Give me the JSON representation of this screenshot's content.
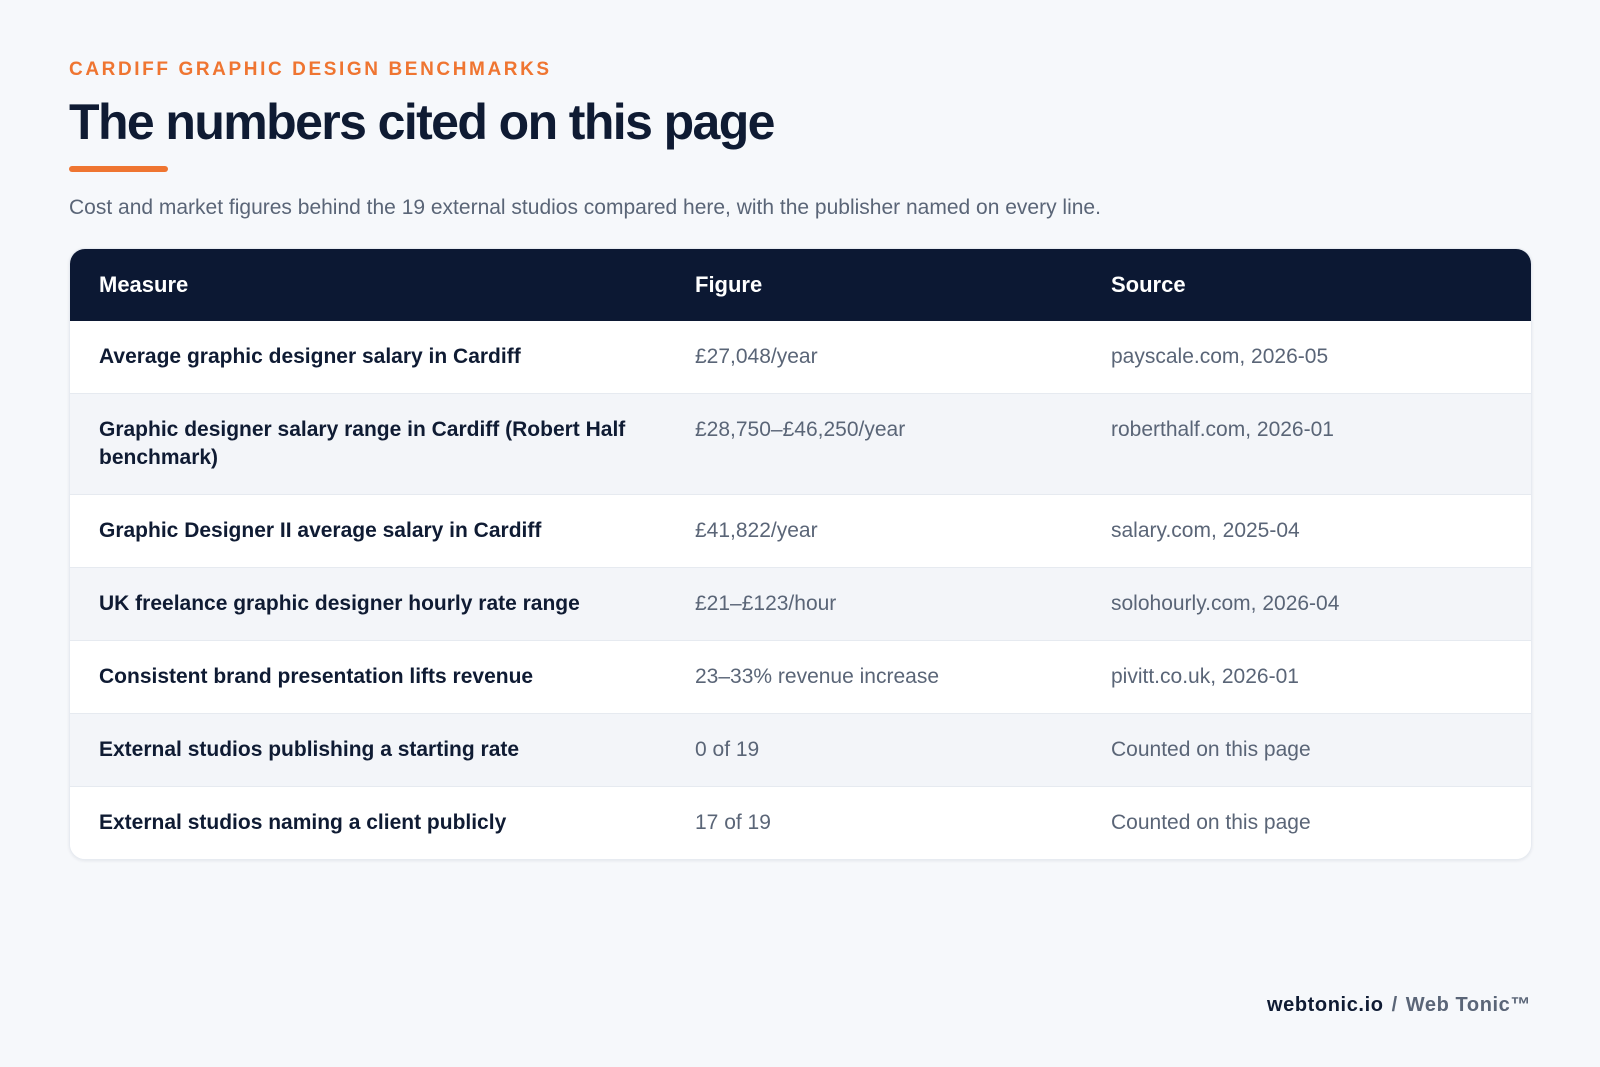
{
  "header": {
    "eyebrow": "CARDIFF GRAPHIC DESIGN BENCHMARKS",
    "title": "The numbers cited on this page",
    "subtitle": "Cost and market figures behind the 19 external studios compared here, with the publisher named on every line."
  },
  "table": {
    "columns": [
      "Measure",
      "Figure",
      "Source"
    ],
    "rows": [
      {
        "measure": "Average graphic designer salary in Cardiff",
        "figure": "£27,048/year",
        "source": "payscale.com, 2026-05"
      },
      {
        "measure": "Graphic designer salary range in Cardiff (Robert Half benchmark)",
        "figure": "£28,750–£46,250/year",
        "source": "roberthalf.com, 2026-01"
      },
      {
        "measure": "Graphic Designer II average salary in Cardiff",
        "figure": "£41,822/year",
        "source": "salary.com, 2025-04"
      },
      {
        "measure": "UK freelance graphic designer hourly rate range",
        "figure": "£21–£123/hour",
        "source": "solohourly.com, 2026-04"
      },
      {
        "measure": "Consistent brand presentation lifts revenue",
        "figure": "23–33% revenue increase",
        "source": "pivitt.co.uk, 2026-01"
      },
      {
        "measure": "External studios publishing a starting rate",
        "figure": "0 of 19",
        "source": "Counted on this page"
      },
      {
        "measure": "External studios naming a client publicly",
        "figure": "17 of 19",
        "source": "Counted on this page"
      }
    ]
  },
  "footer": {
    "domain": "webtonic.io",
    "separator": "/",
    "brand": "Web Tonic™"
  },
  "colors": {
    "accent": "#ef7531",
    "header_bg": "#0c1833",
    "text_dark": "#0f1b33",
    "text_muted": "#5a6577",
    "page_bg": "#f6f8fb"
  }
}
